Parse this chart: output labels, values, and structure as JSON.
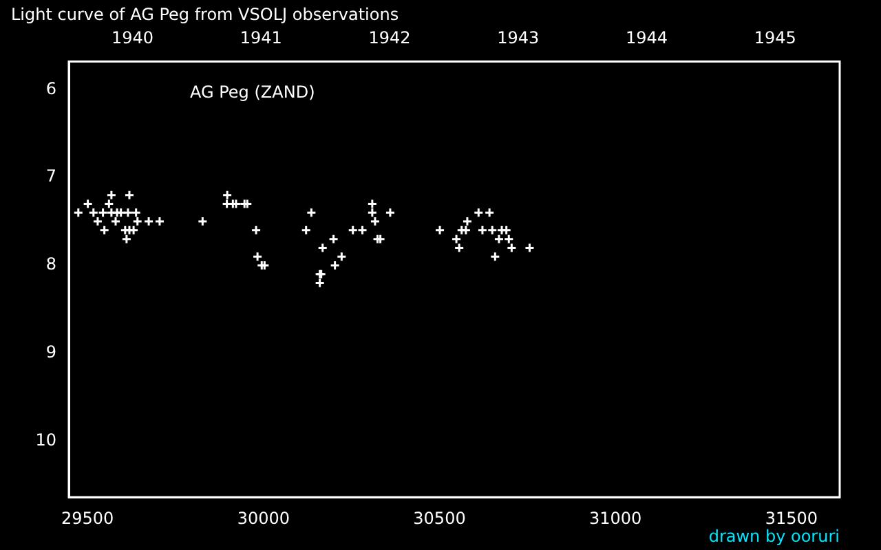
{
  "chart_data": {
    "type": "scatter",
    "title": "Light curve of AG Peg from VSOLJ observations",
    "annotations": [
      "AG Peg (ZAND)",
      "drawn by ooruri"
    ],
    "xlim": [
      29447,
      31637
    ],
    "xticks": [
      29500,
      30000,
      30500,
      31000,
      31500
    ],
    "x2lim": [
      1939.505,
      1945.502
    ],
    "x2ticks": [
      1940,
      1941,
      1942,
      1943,
      1944,
      1945
    ],
    "ylim": [
      10.64,
      5.68
    ],
    "yticks": [
      6,
      7,
      8,
      9,
      10
    ],
    "grid": false,
    "legend": false,
    "marker": "cross",
    "series": [
      {
        "color": "#ffffff",
        "x": [
          29568,
          29619,
          29897,
          29501,
          29561,
          29896,
          29913,
          29922,
          29946,
          29954,
          29474,
          29517,
          29544,
          29568,
          29584,
          29595,
          29615,
          29638,
          30136,
          29529,
          29580,
          29642,
          29674,
          29705,
          29827,
          29548,
          29607,
          29619,
          29631,
          29979,
          30121,
          29611,
          29983,
          29995,
          30003,
          30309,
          30309,
          30360,
          30611,
          30642,
          30317,
          30579,
          30254,
          30281,
          30501,
          30563,
          30575,
          30622,
          30650,
          30677,
          30690,
          30199,
          30324,
          30332,
          30548,
          30669,
          30697,
          30168,
          30556,
          30705,
          30756,
          30222,
          30658,
          30203,
          30160,
          30164,
          30160
        ],
        "values": [
          7.2,
          7.2,
          7.2,
          7.3,
          7.3,
          7.3,
          7.3,
          7.3,
          7.3,
          7.3,
          7.4,
          7.4,
          7.4,
          7.4,
          7.4,
          7.4,
          7.4,
          7.4,
          7.4,
          7.5,
          7.5,
          7.5,
          7.5,
          7.5,
          7.5,
          7.6,
          7.6,
          7.6,
          7.6,
          7.6,
          7.6,
          7.7,
          7.9,
          8.0,
          8.0,
          7.3,
          7.4,
          7.4,
          7.4,
          7.4,
          7.5,
          7.5,
          7.6,
          7.6,
          7.6,
          7.6,
          7.6,
          7.6,
          7.6,
          7.6,
          7.6,
          7.7,
          7.7,
          7.7,
          7.7,
          7.7,
          7.7,
          7.8,
          7.8,
          7.8,
          7.8,
          7.9,
          7.9,
          8.0,
          8.1,
          8.1,
          8.2
        ]
      }
    ]
  }
}
